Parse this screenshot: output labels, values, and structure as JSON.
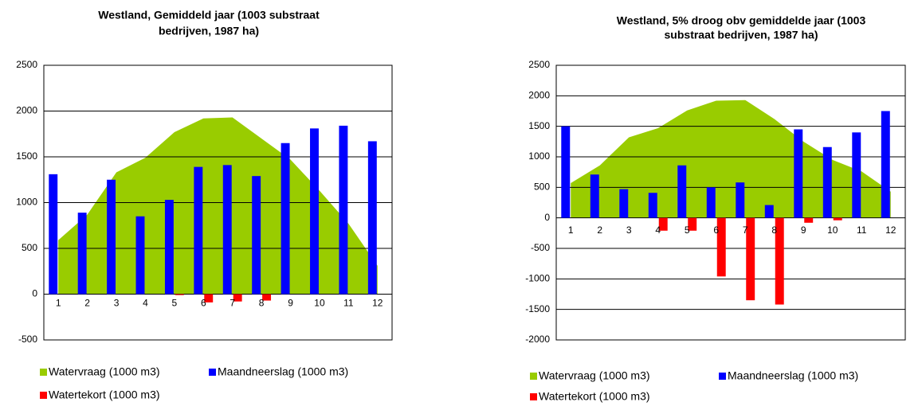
{
  "chart_data": [
    {
      "type": "bar",
      "title": [
        "Westland, Gemiddeld jaar (1003 substraat",
        "bedrijven, 1987 ha)"
      ],
      "categories": [
        "1",
        "2",
        "3",
        "4",
        "5",
        "6",
        "7",
        "8",
        "9",
        "10",
        "11",
        "12"
      ],
      "series": [
        {
          "name": "Watervraag (1000 m3)",
          "type": "area",
          "color": "#99cc00",
          "values": [
            590,
            870,
            1330,
            1490,
            1770,
            1920,
            1930,
            1700,
            1470,
            1130,
            770,
            310
          ]
        },
        {
          "name": "Maandneerslag (1000 m3)",
          "type": "bar",
          "color": "#0000ff",
          "values": [
            1310,
            890,
            1250,
            850,
            1030,
            1390,
            1410,
            1290,
            1650,
            1810,
            1840,
            1670
          ]
        },
        {
          "name": "Watertekort (1000 m3)",
          "type": "bar",
          "color": "#ff0000",
          "values": [
            0,
            0,
            0,
            0,
            -10,
            -90,
            -80,
            -70,
            0,
            0,
            0,
            0
          ]
        }
      ],
      "ylim": [
        -500,
        2500
      ],
      "yticks": [
        -500,
        0,
        500,
        1000,
        1500,
        2000,
        2500
      ],
      "grid": true
    },
    {
      "type": "bar",
      "title": [
        "Westland, 5% droog obv gemiddelde jaar (1003",
        "substraat bedrijven, 1987 ha)"
      ],
      "categories": [
        "1",
        "2",
        "3",
        "4",
        "5",
        "6",
        "7",
        "8",
        "9",
        "10",
        "11",
        "12"
      ],
      "series": [
        {
          "name": "Watervraag (1000 m3)",
          "type": "area",
          "color": "#99cc00",
          "values": [
            570,
            860,
            1320,
            1470,
            1760,
            1920,
            1930,
            1620,
            1250,
            950,
            760,
            430
          ]
        },
        {
          "name": "Maandneerslag (1000 m3)",
          "type": "bar",
          "color": "#0000ff",
          "values": [
            1500,
            710,
            470,
            410,
            860,
            500,
            580,
            210,
            1450,
            1160,
            1400,
            1750
          ]
        },
        {
          "name": "Watertekort (1000 m3)",
          "type": "bar",
          "color": "#ff0000",
          "values": [
            0,
            0,
            0,
            -210,
            -210,
            -960,
            -1350,
            -1420,
            -80,
            -40,
            0,
            0
          ]
        }
      ],
      "ylim": [
        -2000,
        2500
      ],
      "yticks": [
        -2000,
        -1500,
        -1000,
        -500,
        0,
        500,
        1000,
        1500,
        2000,
        2500
      ],
      "grid": true
    }
  ]
}
